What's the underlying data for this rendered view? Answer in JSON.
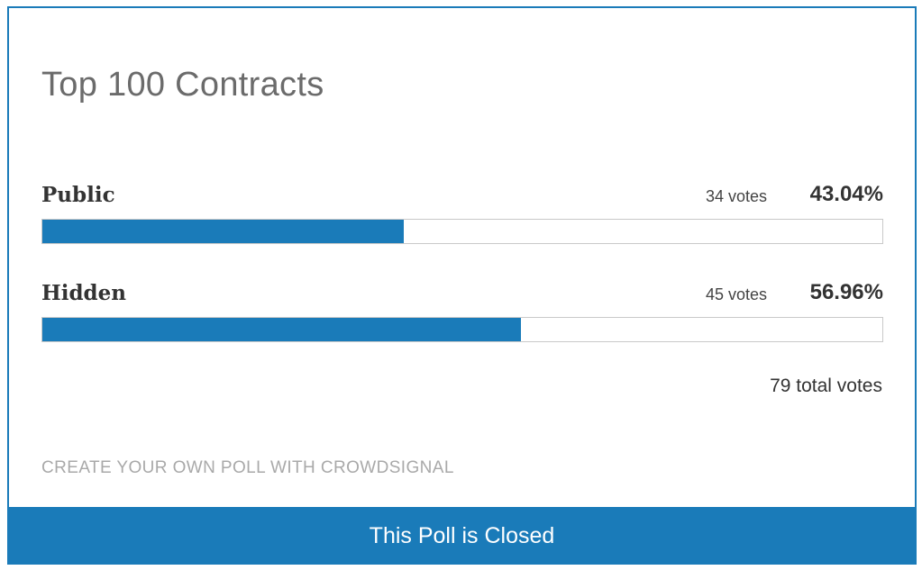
{
  "poll": {
    "title": "Top 100 Contracts",
    "answers": [
      {
        "label": "Public",
        "votes": "34 votes",
        "percent": "43.04%",
        "fraction": 0.4304
      },
      {
        "label": "Hidden",
        "votes": "45 votes",
        "percent": "56.96%",
        "fraction": 0.5696
      }
    ],
    "total_votes": "79 total votes",
    "create_link": "CREATE YOUR OWN POLL WITH CROWDSIGNAL",
    "status_banner": "This Poll is Closed"
  },
  "colors": {
    "accent": "#1a7bb9",
    "title_text": "#6b6b6b",
    "link_text": "#a9a9a9",
    "track_border": "#c9c9c9"
  }
}
